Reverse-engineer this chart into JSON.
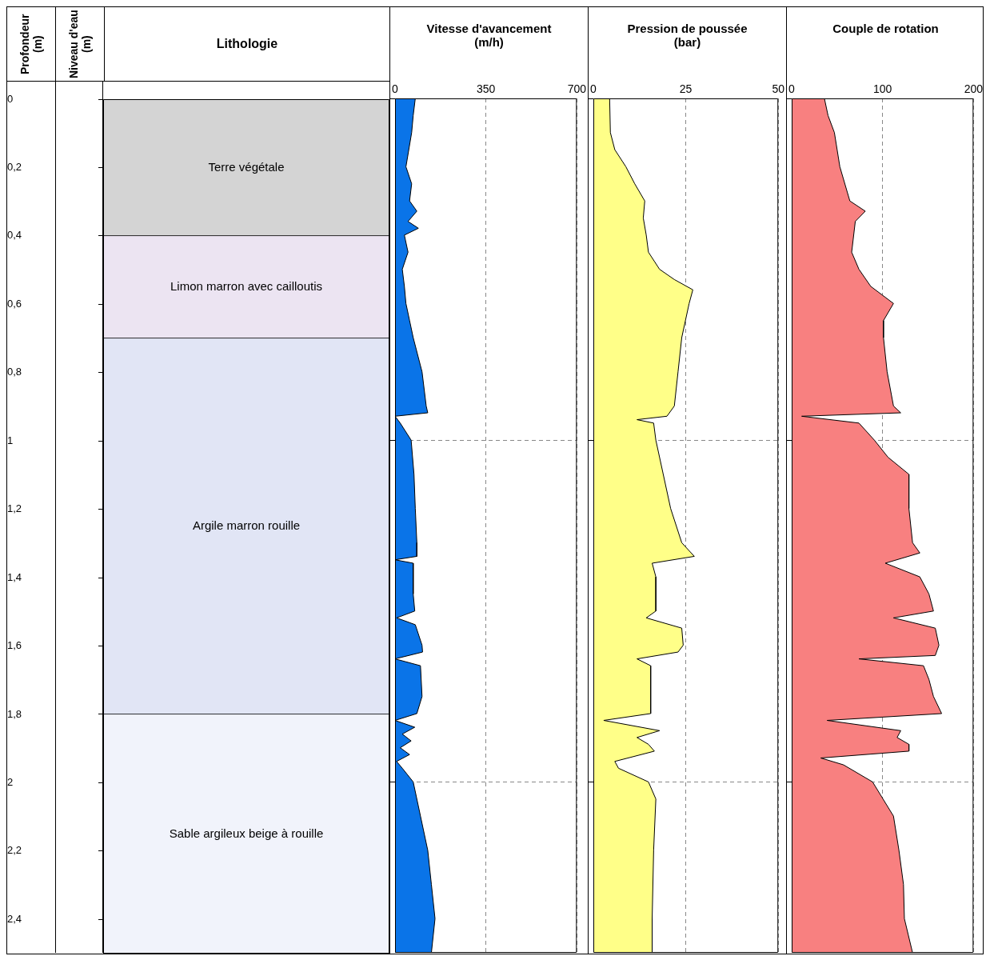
{
  "chart_data": [
    {
      "type": "bar",
      "stacked": true,
      "title": "Lithologie",
      "ylabel": "Profondeur (m)",
      "annotations": [
        "Niveau d'eau (m)"
      ],
      "ylim": [
        2.5,
        0
      ],
      "tick_labels": "y",
      "categories": [
        null
      ],
      "series": [
        {
          "name": "Terre végétale",
          "color": "#d4d4d4",
          "values": [
            0.4
          ]
        },
        {
          "name": "Limon marron avec cailloutis",
          "color": "#ece4f2",
          "values": [
            0.3
          ]
        },
        {
          "name": "Argile marron rouille",
          "color": "#e1e5f5",
          "values": [
            1.1
          ]
        },
        {
          "name": "Sable argileux beige à rouille",
          "color": "#f1f3fb",
          "values": [
            0.7
          ]
        }
      ],
      "yticks": [
        0,
        {
          "value": 0.2,
          "label": "0,2"
        },
        {
          "value": 0.4,
          "label": "0,4"
        },
        {
          "value": 0.6,
          "label": "0,6"
        },
        {
          "value": 0.8,
          "label": "0,8"
        },
        1,
        {
          "value": 1.2,
          "label": "1,2"
        },
        {
          "value": 1.4,
          "label": "1,4"
        },
        {
          "value": 1.6,
          "label": "1,6"
        },
        {
          "value": 1.8,
          "label": "1,8"
        },
        2,
        {
          "value": 2.2,
          "label": "2,2"
        },
        {
          "value": 2.4,
          "label": "2,4"
        }
      ],
      "legend": false
    },
    {
      "type": "area",
      "orientation": "horizontal",
      "title": "Vitesse d'avancement",
      "xlabel": "(m/h)",
      "color": "#0a74e8",
      "xlim": [
        0,
        700
      ],
      "xticks": [
        0,
        350,
        700
      ],
      "ylim": [
        2.5,
        0
      ],
      "yticks": [
        {
          "value": 0,
          "label": null
        },
        {
          "value": 1,
          "label": null
        },
        {
          "value": 2,
          "label": null
        }
      ],
      "tick_labels": "x",
      "grid": true,
      "legend": false,
      "marker": "none",
      "x": [
        0,
        0.05,
        0.1,
        0.2,
        0.25,
        0.3,
        0.33,
        0.36,
        0.38,
        0.4,
        0.45,
        0.5,
        0.55,
        0.6,
        0.65,
        0.7,
        0.8,
        0.9,
        0.92,
        0.93,
        0.95,
        1.0,
        1.1,
        1.2,
        1.3,
        1.34,
        1.35,
        1.36,
        1.45,
        1.5,
        1.52,
        1.54,
        1.6,
        1.62,
        1.64,
        1.66,
        1.75,
        1.8,
        1.82,
        1.84,
        1.86,
        1.88,
        1.9,
        1.92,
        1.94,
        1.96,
        2.0,
        2.1,
        2.2,
        2.3,
        2.4,
        2.5
      ],
      "values": [
        78,
        70,
        64,
        42,
        64,
        56,
        84,
        50,
        90,
        36,
        50,
        28,
        36,
        42,
        56,
        70,
        104,
        120,
        126,
        0,
        20,
        62,
        73,
        78,
        84,
        84,
        0,
        70,
        70,
        76,
        6,
        78,
        104,
        106,
        0,
        98,
        104,
        84,
        0,
        76,
        28,
        62,
        20,
        56,
        6,
        28,
        70,
        98,
        126,
        140,
        154,
        140
      ]
    },
    {
      "type": "area",
      "orientation": "horizontal",
      "title": "Pression de poussée",
      "xlabel": "(bar)",
      "color": "#ffff88",
      "xlim": [
        0,
        50
      ],
      "xticks": [
        0,
        25,
        50
      ],
      "ylim": [
        2.5,
        0
      ],
      "yticks": [
        {
          "value": 0,
          "label": null
        },
        {
          "value": 1,
          "label": null
        },
        {
          "value": 2,
          "label": null
        }
      ],
      "tick_labels": "x",
      "grid": true,
      "legend": false,
      "marker": "none",
      "x": [
        0,
        0.1,
        0.15,
        0.2,
        0.25,
        0.3,
        0.35,
        0.4,
        0.45,
        0.5,
        0.53,
        0.56,
        0.6,
        0.7,
        0.8,
        0.9,
        0.93,
        0.94,
        0.95,
        1.0,
        1.1,
        1.2,
        1.3,
        1.34,
        1.36,
        1.4,
        1.5,
        1.52,
        1.55,
        1.6,
        1.62,
        1.64,
        1.66,
        1.8,
        1.82,
        1.85,
        1.87,
        1.89,
        1.91,
        1.94,
        1.96,
        2.0,
        2.05,
        2.2,
        2.4,
        2.5
      ],
      "values": [
        4.4,
        4.6,
        5.8,
        8.8,
        11.2,
        13.9,
        13.5,
        14.3,
        14.9,
        17.9,
        21.9,
        26.9,
        25.9,
        23.9,
        22.9,
        21.9,
        19.9,
        11.8,
        16.3,
        16.9,
        18.9,
        20.9,
        23.9,
        27.3,
        15.9,
        16.9,
        16.9,
        14.3,
        23.9,
        24.3,
        22.9,
        11.8,
        15.5,
        15.5,
        2.8,
        17.9,
        11.8,
        14.9,
        16.5,
        5.8,
        6.8,
        14.9,
        16.9,
        16.3,
        15.9,
        15.9
      ]
    },
    {
      "type": "area",
      "orientation": "horizontal",
      "title": "Couple de rotation",
      "color": "#f88080",
      "xlim": [
        0,
        200
      ],
      "xticks": [
        0,
        100,
        200
      ],
      "ylim": [
        2.5,
        0
      ],
      "yticks": [
        {
          "value": 0,
          "label": null
        },
        {
          "value": 1,
          "label": null
        },
        {
          "value": 2,
          "label": null
        }
      ],
      "tick_labels": "x",
      "grid": true,
      "legend": false,
      "marker": "none",
      "x": [
        0,
        0.05,
        0.1,
        0.2,
        0.3,
        0.33,
        0.36,
        0.45,
        0.5,
        0.55,
        0.6,
        0.65,
        0.7,
        0.8,
        0.9,
        0.92,
        0.93,
        0.95,
        1.0,
        1.05,
        1.1,
        1.2,
        1.3,
        1.33,
        1.36,
        1.4,
        1.45,
        1.5,
        1.52,
        1.55,
        1.6,
        1.63,
        1.64,
        1.66,
        1.7,
        1.75,
        1.8,
        1.82,
        1.85,
        1.87,
        1.89,
        1.91,
        1.93,
        1.95,
        2.0,
        2.1,
        2.2,
        2.3,
        2.4,
        2.5
      ],
      "values": [
        36,
        40,
        47,
        53,
        64,
        81,
        70,
        66,
        74,
        87,
        112,
        101,
        101,
        105,
        112,
        120,
        11,
        74,
        91,
        106,
        129,
        129,
        133,
        141,
        103,
        141,
        151,
        156,
        112,
        158,
        162,
        158,
        74,
        145,
        151,
        156,
        165,
        39,
        120,
        116,
        129,
        129,
        32,
        57,
        89,
        112,
        118,
        123,
        124,
        133
      ]
    }
  ]
}
